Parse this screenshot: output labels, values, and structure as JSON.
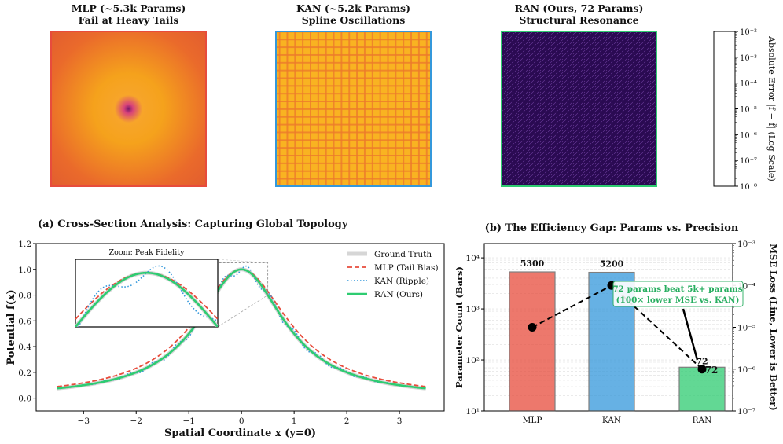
{
  "colors": {
    "mlp": "#e74c3c",
    "kan": "#3498db",
    "ran": "#2ecc71",
    "truth": "#cccccc",
    "annotation": "#27ae60"
  },
  "chart_data": [
    {
      "type": "heatmap",
      "title": "MLP (~5.3k Params)",
      "subtitle": "Fail at Heavy Tails",
      "border_color": "#e74c3c",
      "pattern": "radial error low at center, high elsewhere"
    },
    {
      "type": "heatmap",
      "title": "KAN (~5.2k Params)",
      "subtitle": "Spline Oscillations",
      "border_color": "#3498db",
      "pattern": "grid-like oscillation"
    },
    {
      "type": "heatmap",
      "title": "RAN (Ours, 72 Params)",
      "subtitle": "Structural Resonance",
      "border_color": "#2ecc71",
      "pattern": "uniform low error noise"
    },
    {
      "type": "colorbar",
      "label": "Absolute Error |f − f̂| (Log Scale)",
      "scale": "log",
      "range": [
        1e-08,
        0.01
      ],
      "ticks": [
        "10⁻²",
        "10⁻³",
        "10⁻⁴",
        "10⁻⁵",
        "10⁻⁶",
        "10⁻⁷",
        "10⁻⁸"
      ]
    },
    {
      "type": "line",
      "title": "(a) Cross-Section Analysis: Capturing Global Topology",
      "xlabel": "Spatial Coordinate x (y=0)",
      "ylabel": "Potential f(x)",
      "xlim": [
        -3.9,
        3.85
      ],
      "ylim": [
        -0.1,
        1.2
      ],
      "xticks": [
        "−3",
        "−2",
        "−1",
        "0",
        "1",
        "2",
        "3"
      ],
      "xtick_values": [
        -3,
        -2,
        -1,
        0,
        1,
        2,
        3
      ],
      "yticks": [
        "0.0",
        "0.2",
        "0.4",
        "0.6",
        "0.8",
        "1.0",
        "1.2"
      ],
      "ytick_values": [
        0,
        0.2,
        0.4,
        0.6,
        0.8,
        1.0,
        1.2
      ],
      "x_range": [
        -3.5,
        3.5
      ],
      "series": [
        {
          "name": "Ground Truth",
          "formula": "1/(1+x^2)",
          "style": "solid-thick"
        },
        {
          "name": "MLP (Tail Bias)",
          "formula": "1/(1+(x/1.1)^2)",
          "style": "dashed"
        },
        {
          "name": "KAN (Ripple)",
          "formula": "1/(1+x^2)+0.035*sin(14x)",
          "style": "dotted"
        },
        {
          "name": "RAN (Ours)",
          "formula": "1/(1+x^2)",
          "style": "solid"
        }
      ],
      "legend": "top-right",
      "inset": {
        "title": "Zoom: Peak Fidelity",
        "xlim": [
          -0.5,
          0.5
        ],
        "ylim": [
          0.8,
          1.05
        ]
      }
    },
    {
      "type": "bar",
      "title": "(b) The Efficiency Gap: Params vs. Precision",
      "categories": [
        "MLP",
        "KAN",
        "RAN"
      ],
      "values": [
        5300,
        5200,
        72
      ],
      "value_labels": [
        "5300",
        "5200",
        "72"
      ],
      "ylabel": "Parameter Count (Bars)",
      "yscale": "log",
      "ylim": [
        10,
        19000
      ],
      "yticks": [
        "10¹",
        "10²",
        "10³",
        "10⁴"
      ],
      "secondary": {
        "ylabel": "MSE Loss (Line, Lower is Better)",
        "yscale": "log",
        "ylim": [
          1e-07,
          0.001
        ],
        "yticks": [
          "10⁻⁷",
          "10⁻⁶",
          "10⁻⁵",
          "10⁻⁴",
          "10⁻³"
        ],
        "values": [
          1e-05,
          0.0001,
          1e-06
        ],
        "style": "dashed-black-markers"
      },
      "annotation": {
        "line1": "72 params beat 5k+ params",
        "line2": "(100× lower MSE vs. KAN)",
        "target": "RAN",
        "label": "72"
      }
    }
  ]
}
